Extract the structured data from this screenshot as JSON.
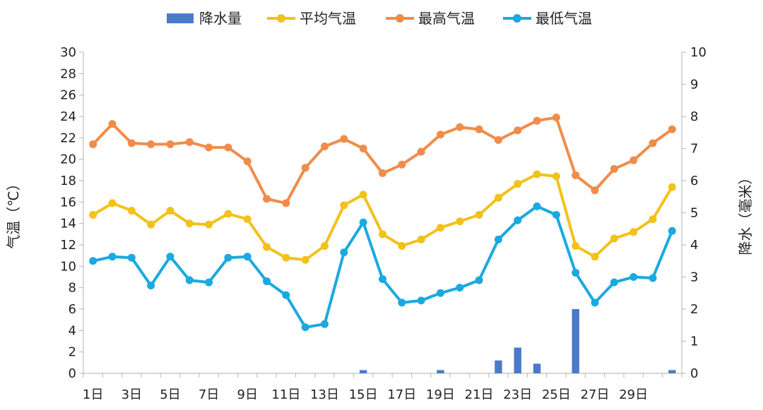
{
  "chart_data": {
    "type": "line+bar",
    "categories": [
      "1日",
      "2日",
      "3日",
      "4日",
      "5日",
      "6日",
      "7日",
      "8日",
      "9日",
      "10日",
      "11日",
      "12日",
      "13日",
      "14日",
      "15日",
      "16日",
      "17日",
      "18日",
      "19日",
      "20日",
      "21日",
      "22日",
      "23日",
      "24日",
      "25日",
      "26日",
      "27日",
      "28日",
      "29日",
      "30日",
      "31日"
    ],
    "x_tick_labels": [
      "1日",
      "3日",
      "5日",
      "7日",
      "9日",
      "11日",
      "13日",
      "15日",
      "17日",
      "19日",
      "21日",
      "23日",
      "25日",
      "27日",
      "29日"
    ],
    "ylabel_left": "气温（℃）",
    "ylabel_right": "降水（毫米）",
    "ylim_left": [
      0,
      30
    ],
    "ylim_right": [
      0,
      10
    ],
    "yticks_left": [
      "0",
      "2",
      "4",
      "6",
      "8",
      "10",
      "12",
      "14",
      "16",
      "18",
      "20",
      "22",
      "24",
      "26",
      "28",
      "30"
    ],
    "yticks_right": [
      "0",
      "1",
      "2",
      "3",
      "4",
      "5",
      "6",
      "7",
      "8",
      "9",
      "10"
    ],
    "grid": false,
    "legend_position": "top",
    "series": [
      {
        "name": "降水量",
        "type": "bar",
        "axis": "right",
        "color": "#4a7ac8",
        "values": [
          0,
          0,
          0,
          0,
          0,
          0,
          0,
          0,
          0,
          0,
          0,
          0,
          0,
          0,
          0.1,
          0,
          0,
          0,
          0.1,
          0,
          0,
          0.4,
          0.8,
          0.3,
          0,
          2.0,
          0,
          0,
          0,
          0,
          0.1
        ]
      },
      {
        "name": "平均气温",
        "type": "line",
        "axis": "left",
        "color": "#f2c21b",
        "values": [
          14.8,
          15.9,
          15.2,
          13.9,
          15.2,
          14.0,
          13.9,
          14.9,
          14.4,
          11.8,
          10.8,
          10.6,
          11.9,
          15.7,
          16.7,
          13.0,
          11.9,
          12.5,
          13.6,
          14.2,
          14.8,
          16.4,
          17.7,
          18.6,
          18.4,
          11.9,
          10.9,
          12.6,
          13.2,
          14.4,
          17.4
        ]
      },
      {
        "name": "最高气温",
        "type": "line",
        "axis": "left",
        "color": "#f08c4a",
        "values": [
          21.4,
          23.3,
          21.5,
          21.4,
          21.4,
          21.6,
          21.1,
          21.1,
          19.8,
          16.3,
          15.9,
          19.2,
          21.2,
          21.9,
          21.0,
          18.7,
          19.5,
          20.7,
          22.3,
          23.0,
          22.8,
          21.8,
          22.7,
          23.6,
          23.9,
          18.5,
          17.1,
          19.1,
          19.9,
          21.5,
          22.8
        ]
      },
      {
        "name": "最低气温",
        "type": "line",
        "axis": "left",
        "color": "#1aa9e0",
        "values": [
          10.5,
          10.9,
          10.8,
          8.2,
          10.9,
          8.7,
          8.5,
          10.8,
          10.9,
          8.6,
          7.3,
          4.3,
          4.6,
          11.3,
          14.1,
          8.8,
          6.6,
          6.8,
          7.5,
          8.0,
          8.7,
          12.5,
          14.3,
          15.6,
          14.8,
          9.4,
          6.6,
          8.5,
          9.0,
          8.9,
          13.3
        ]
      }
    ]
  }
}
